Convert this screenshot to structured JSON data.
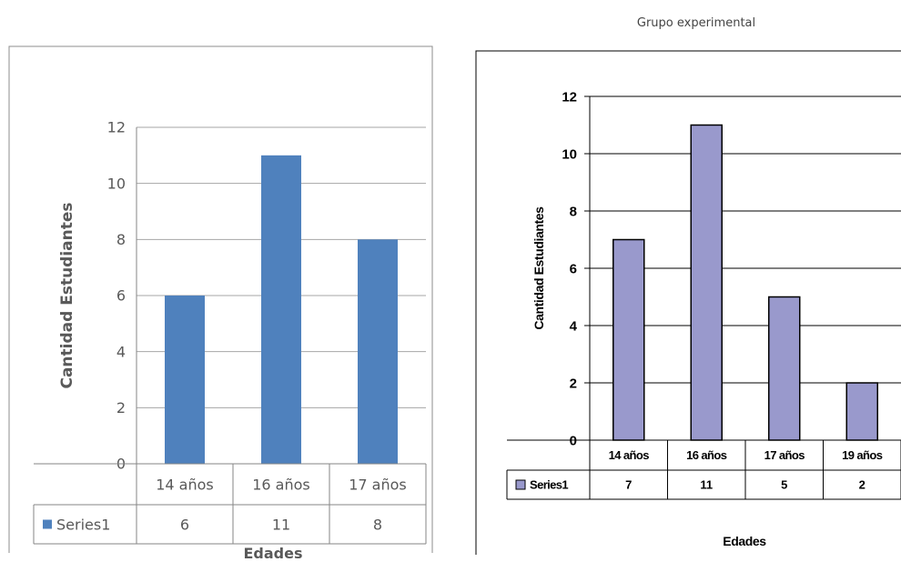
{
  "header": {
    "caption": "Grupo experimental"
  },
  "chart_data": [
    {
      "type": "bar",
      "title": "",
      "xlabel": "Edades",
      "ylabel": "Cantidad Estudiantes",
      "categories": [
        "14 años",
        "16 años",
        "17 años"
      ],
      "series": [
        {
          "name": "Series1",
          "values": [
            6,
            11,
            8
          ]
        }
      ],
      "value_labels": [
        "6",
        "11",
        "8"
      ],
      "ylim": [
        0,
        12
      ],
      "yticks": [
        "0",
        "2",
        "4",
        "6",
        "8",
        "10",
        "12"
      ],
      "grid": true,
      "legend": "data-table",
      "colors": {
        "bar": "#4f81bd",
        "grid": "#a6a6a6",
        "frame": "#8c8c8c"
      }
    },
    {
      "type": "bar",
      "title": "",
      "xlabel": "Edades",
      "ylabel": "Cantidad Estudiantes",
      "categories": [
        "14 años",
        "16 años",
        "17 años",
        "19 años"
      ],
      "series": [
        {
          "name": "Series1",
          "values": [
            7,
            11,
            5,
            2
          ]
        }
      ],
      "value_labels": [
        "7",
        "11",
        "5",
        "2"
      ],
      "ylim": [
        0,
        12
      ],
      "yticks": [
        "0",
        "2",
        "4",
        "6",
        "8",
        "10",
        "12"
      ],
      "grid": true,
      "legend": "data-table",
      "colors": {
        "bar": "#9999cc",
        "grid": "#000000",
        "frame": "#000000"
      }
    }
  ]
}
